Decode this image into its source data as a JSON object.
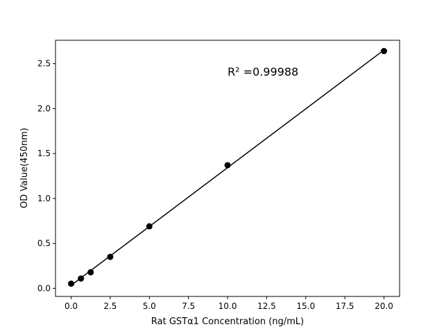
{
  "chart_data": {
    "type": "scatter",
    "title": "",
    "xlabel": "Rat GSTα1 Concentration (ng/mL)",
    "ylabel": "OD Value(450nm)",
    "xlim": [
      -1,
      21
    ],
    "ylim": [
      -0.09,
      2.76
    ],
    "xticks": [
      "0.0",
      "2.5",
      "5.0",
      "7.5",
      "10.0",
      "12.5",
      "15.0",
      "17.5",
      "20.0"
    ],
    "yticks": [
      "0.0",
      "0.5",
      "1.0",
      "1.5",
      "2.0",
      "2.5"
    ],
    "grid": false,
    "x": [
      0,
      0.625,
      1.25,
      2.5,
      5,
      10,
      20
    ],
    "y": [
      0.052,
      0.109,
      0.179,
      0.35,
      0.69,
      1.37,
      2.64
    ],
    "fit": "linear",
    "annotation": "R² =0.99988",
    "colors": {
      "points": "#000000",
      "line": "#000000"
    }
  }
}
